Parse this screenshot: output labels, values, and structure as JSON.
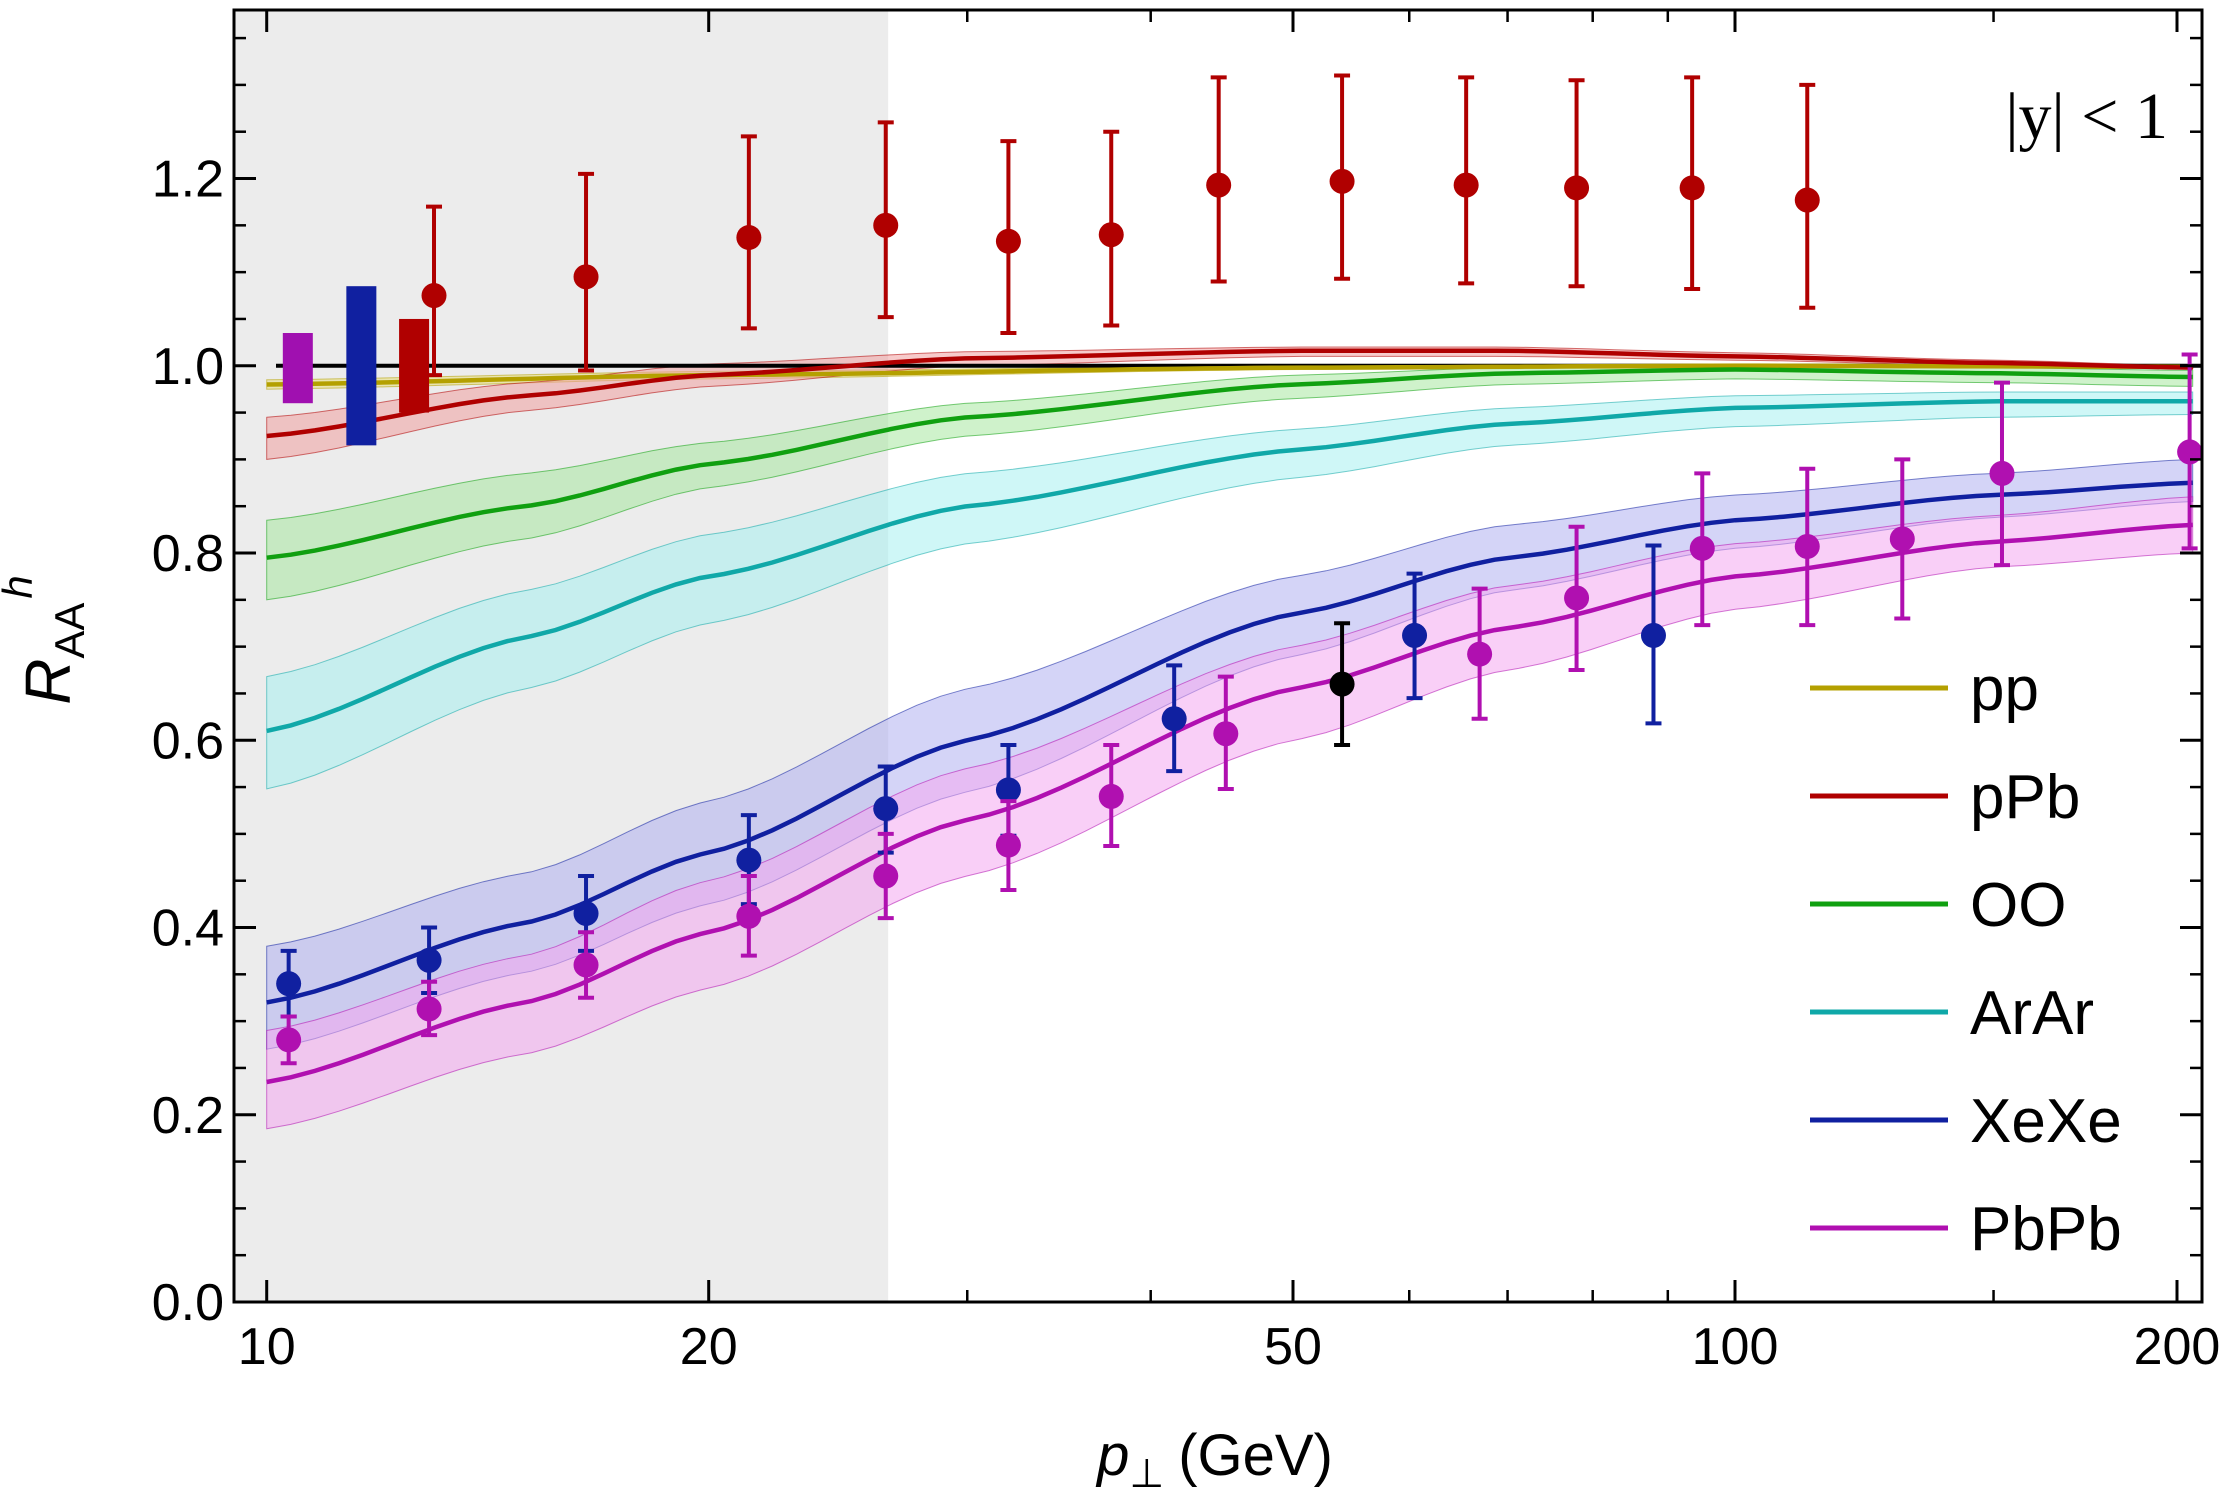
{
  "chart_data": {
    "type": "line",
    "title": "",
    "xlabel": {
      "main": "p",
      "sub": "⊥",
      "unit": "(GeV)"
    },
    "ylabel": {
      "main": "R",
      "sub": "AA",
      "sup": "h"
    },
    "x_scale": "log",
    "xlim": [
      9.5,
      208
    ],
    "ylim": [
      0.0,
      1.38
    ],
    "x_ticks": [
      {
        "value": 10,
        "label": "10"
      },
      {
        "value": 20,
        "label": "20"
      },
      {
        "value": 50,
        "label": "50"
      },
      {
        "value": 100,
        "label": "100"
      },
      {
        "value": 200,
        "label": "200"
      }
    ],
    "x_minor_ticks": [
      30,
      40,
      60,
      70,
      80,
      90,
      150
    ],
    "y_ticks": [
      {
        "value": 0.0,
        "label": "0.0"
      },
      {
        "value": 0.2,
        "label": "0.2"
      },
      {
        "value": 0.4,
        "label": "0.4"
      },
      {
        "value": 0.6,
        "label": "0.6"
      },
      {
        "value": 0.8,
        "label": "0.8"
      },
      {
        "value": 1.0,
        "label": "1.0"
      },
      {
        "value": 1.2,
        "label": "1.2"
      }
    ],
    "shaded_region": {
      "x_from": 9.5,
      "x_to": 26.5,
      "color": "#ececec"
    },
    "reference_line": {
      "y": 1.0,
      "color": "#000000"
    },
    "annotation": "|y| < 1",
    "series": [
      {
        "name": "pp",
        "color": "#b4a000",
        "band": "#e8df80",
        "x": [
          10,
          20,
          50,
          100,
          205
        ],
        "central": [
          0.98,
          0.99,
          0.998,
          1.0,
          0.999
        ],
        "lower": [
          0.975,
          0.986,
          0.996,
          0.998,
          0.997
        ],
        "upper": [
          0.985,
          0.994,
          1.0,
          1.002,
          1.001
        ]
      },
      {
        "name": "pPb",
        "color": "#b00000",
        "band": "#f0a0a0",
        "x": [
          10,
          15,
          20,
          30,
          50,
          70,
          100,
          150,
          205
        ],
        "central": [
          0.925,
          0.968,
          0.99,
          1.008,
          1.016,
          1.016,
          1.01,
          1.003,
          0.998
        ],
        "lower": [
          0.9,
          0.952,
          0.978,
          1.0,
          1.01,
          1.01,
          1.006,
          1.0,
          0.997
        ],
        "upper": [
          0.945,
          0.982,
          1.002,
          1.015,
          1.02,
          1.02,
          1.014,
          1.006,
          1.0
        ]
      },
      {
        "name": "OO",
        "color": "#10a010",
        "band": "#a8e8a0",
        "x": [
          10,
          15,
          20,
          30,
          50,
          70,
          100,
          150,
          205
        ],
        "central": [
          0.795,
          0.85,
          0.895,
          0.945,
          0.98,
          0.992,
          0.996,
          0.992,
          0.988
        ],
        "lower": [
          0.75,
          0.815,
          0.87,
          0.925,
          0.965,
          0.98,
          0.986,
          0.982,
          0.978
        ],
        "upper": [
          0.835,
          0.885,
          0.918,
          0.96,
          0.99,
          0.998,
          1.0,
          0.998,
          0.995
        ]
      },
      {
        "name": "ArAr",
        "color": "#10a8a8",
        "band": "#a8f0f0",
        "x": [
          10,
          15,
          20,
          30,
          50,
          70,
          100,
          150,
          205
        ],
        "central": [
          0.61,
          0.71,
          0.775,
          0.85,
          0.91,
          0.938,
          0.955,
          0.962,
          0.962
        ],
        "lower": [
          0.548,
          0.655,
          0.725,
          0.81,
          0.88,
          0.915,
          0.935,
          0.945,
          0.948
        ],
        "upper": [
          0.668,
          0.76,
          0.82,
          0.885,
          0.932,
          0.955,
          0.968,
          0.972,
          0.972
        ]
      },
      {
        "name": "XeXe",
        "color": "#1020a0",
        "band": "#b0b0f0",
        "x": [
          10,
          15,
          20,
          30,
          50,
          70,
          100,
          150,
          205
        ],
        "central": [
          0.32,
          0.405,
          0.48,
          0.6,
          0.735,
          0.795,
          0.835,
          0.862,
          0.875
        ],
        "lower": [
          0.27,
          0.352,
          0.425,
          0.545,
          0.69,
          0.76,
          0.805,
          0.838,
          0.855
        ],
        "upper": [
          0.38,
          0.458,
          0.535,
          0.655,
          0.775,
          0.83,
          0.862,
          0.885,
          0.9
        ]
      },
      {
        "name": "PbPb",
        "color": "#b010b0",
        "band": "#f4a8f0",
        "x": [
          10,
          15,
          20,
          30,
          50,
          70,
          100,
          150,
          205
        ],
        "central": [
          0.235,
          0.32,
          0.395,
          0.515,
          0.655,
          0.72,
          0.775,
          0.812,
          0.83
        ],
        "lower": [
          0.185,
          0.265,
          0.335,
          0.455,
          0.6,
          0.675,
          0.74,
          0.785,
          0.8
        ],
        "upper": [
          0.29,
          0.37,
          0.45,
          0.57,
          0.7,
          0.765,
          0.81,
          0.84,
          0.86
        ]
      }
    ],
    "data_points": [
      {
        "name": "pPb data",
        "color": "#b00000",
        "points": [
          {
            "x": 13.0,
            "y": 1.075,
            "lo": 0.99,
            "hi": 1.17
          },
          {
            "x": 16.5,
            "y": 1.095,
            "lo": 0.995,
            "hi": 1.205
          },
          {
            "x": 21.3,
            "y": 1.137,
            "lo": 1.04,
            "hi": 1.245
          },
          {
            "x": 26.4,
            "y": 1.15,
            "lo": 1.052,
            "hi": 1.26
          },
          {
            "x": 32.0,
            "y": 1.133,
            "lo": 1.035,
            "hi": 1.24
          },
          {
            "x": 37.6,
            "y": 1.14,
            "lo": 1.043,
            "hi": 1.25
          },
          {
            "x": 44.5,
            "y": 1.193,
            "lo": 1.09,
            "hi": 1.308
          },
          {
            "x": 54.0,
            "y": 1.197,
            "lo": 1.093,
            "hi": 1.31
          },
          {
            "x": 65.6,
            "y": 1.193,
            "lo": 1.088,
            "hi": 1.308
          },
          {
            "x": 78.0,
            "y": 1.19,
            "lo": 1.085,
            "hi": 1.305
          },
          {
            "x": 93.5,
            "y": 1.19,
            "lo": 1.082,
            "hi": 1.308
          },
          {
            "x": 112.0,
            "y": 1.177,
            "lo": 1.062,
            "hi": 1.3
          }
        ]
      },
      {
        "name": "XeXe data",
        "color": "#1020a0",
        "points": [
          {
            "x": 10.35,
            "y": 0.34,
            "lo": 0.305,
            "hi": 0.375
          },
          {
            "x": 12.9,
            "y": 0.365,
            "lo": 0.33,
            "hi": 0.4
          },
          {
            "x": 16.5,
            "y": 0.415,
            "lo": 0.375,
            "hi": 0.455
          },
          {
            "x": 21.3,
            "y": 0.472,
            "lo": 0.425,
            "hi": 0.52
          },
          {
            "x": 26.4,
            "y": 0.527,
            "lo": 0.48,
            "hi": 0.572
          },
          {
            "x": 32.0,
            "y": 0.547,
            "lo": 0.498,
            "hi": 0.595
          },
          {
            "x": 41.5,
            "y": 0.623,
            "lo": 0.567,
            "hi": 0.68
          },
          {
            "x": 60.5,
            "y": 0.712,
            "lo": 0.645,
            "hi": 0.778
          },
          {
            "x": 88.0,
            "y": 0.712,
            "lo": 0.618,
            "hi": 0.808
          }
        ]
      },
      {
        "name": "PbPb data",
        "color": "#b010b0",
        "points": [
          {
            "x": 10.35,
            "y": 0.28,
            "lo": 0.255,
            "hi": 0.305
          },
          {
            "x": 12.9,
            "y": 0.313,
            "lo": 0.285,
            "hi": 0.342
          },
          {
            "x": 16.5,
            "y": 0.36,
            "lo": 0.325,
            "hi": 0.395
          },
          {
            "x": 21.3,
            "y": 0.412,
            "lo": 0.37,
            "hi": 0.455
          },
          {
            "x": 26.4,
            "y": 0.455,
            "lo": 0.41,
            "hi": 0.5
          },
          {
            "x": 32.0,
            "y": 0.488,
            "lo": 0.44,
            "hi": 0.535
          },
          {
            "x": 37.6,
            "y": 0.54,
            "lo": 0.487,
            "hi": 0.595
          },
          {
            "x": 45.0,
            "y": 0.607,
            "lo": 0.548,
            "hi": 0.668
          },
          {
            "x": 67.0,
            "y": 0.692,
            "lo": 0.623,
            "hi": 0.762
          },
          {
            "x": 78.0,
            "y": 0.752,
            "lo": 0.675,
            "hi": 0.828
          },
          {
            "x": 95.0,
            "y": 0.805,
            "lo": 0.723,
            "hi": 0.885
          },
          {
            "x": 112.0,
            "y": 0.807,
            "lo": 0.723,
            "hi": 0.89
          },
          {
            "x": 130.0,
            "y": 0.815,
            "lo": 0.73,
            "hi": 0.9
          },
          {
            "x": 152.0,
            "y": 0.885,
            "lo": 0.787,
            "hi": 0.982
          },
          {
            "x": 204.0,
            "y": 0.908,
            "lo": 0.805,
            "hi": 1.012
          }
        ]
      },
      {
        "name": "OO data",
        "color": "#000000",
        "points": [
          {
            "x": 54.0,
            "y": 0.66,
            "lo": 0.595,
            "hi": 0.725
          }
        ]
      }
    ],
    "normalization_boxes": [
      {
        "name": "PbPb norm",
        "color": "#a010b0",
        "x": 10.5,
        "lo": 0.96,
        "hi": 1.035
      },
      {
        "name": "XeXe norm",
        "color": "#1020a0",
        "x": 11.6,
        "lo": 0.915,
        "hi": 1.085
      },
      {
        "name": "pPb norm",
        "color": "#b00000",
        "x": 12.6,
        "lo": 0.95,
        "hi": 1.05
      }
    ]
  }
}
